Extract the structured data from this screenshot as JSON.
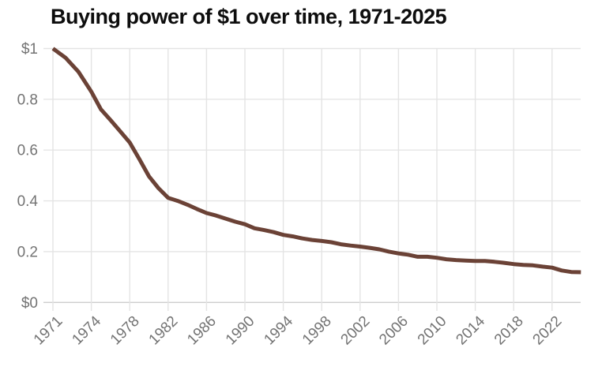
{
  "chart_data": {
    "type": "line",
    "title": "Buying power of $1 over time, 1971-2025",
    "series_name": "Buying power of $1",
    "xlabel": "",
    "ylabel": "",
    "ylim": [
      0,
      1
    ],
    "xlim": [
      1971,
      2025
    ],
    "grid": true,
    "legend_position": "none",
    "x_ticks": [
      1971,
      1974,
      1978,
      1982,
      1986,
      1990,
      1994,
      1998,
      2002,
      2006,
      2010,
      2014,
      2018,
      2022
    ],
    "y_ticks": [
      {
        "value": 0.0,
        "label": "$0"
      },
      {
        "value": 0.2,
        "label": "0.2"
      },
      {
        "value": 0.4,
        "label": "0.4"
      },
      {
        "value": 0.6,
        "label": "0.6"
      },
      {
        "value": 0.8,
        "label": "0.8"
      },
      {
        "value": 1.0,
        "label": "$1"
      }
    ],
    "x": [
      1971,
      1972,
      1973,
      1974,
      1975,
      1976,
      1977,
      1978,
      1979,
      1980,
      1981,
      1982,
      1983,
      1984,
      1985,
      1986,
      1987,
      1988,
      1989,
      1990,
      1991,
      1992,
      1993,
      1994,
      1995,
      1996,
      1997,
      1998,
      1999,
      2000,
      2001,
      2002,
      2003,
      2004,
      2005,
      2006,
      2007,
      2008,
      2009,
      2010,
      2011,
      2012,
      2013,
      2014,
      2015,
      2016,
      2017,
      2018,
      2019,
      2020,
      2021,
      2022,
      2023,
      2024,
      2025
    ],
    "values": [
      1.0,
      0.963,
      0.908,
      0.83,
      0.76,
      0.718,
      0.674,
      0.63,
      0.565,
      0.497,
      0.45,
      0.412,
      0.4,
      0.385,
      0.368,
      0.352,
      0.342,
      0.33,
      0.318,
      0.308,
      0.292,
      0.285,
      0.277,
      0.266,
      0.26,
      0.252,
      0.246,
      0.242,
      0.237,
      0.229,
      0.224,
      0.22,
      0.215,
      0.209,
      0.2,
      0.193,
      0.188,
      0.18,
      0.18,
      0.176,
      0.17,
      0.167,
      0.165,
      0.163,
      0.163,
      0.16,
      0.156,
      0.151,
      0.148,
      0.146,
      0.141,
      0.137,
      0.126,
      0.12,
      0.119
    ],
    "colors": {
      "line": "#6b4236",
      "grid": "#e4e4e4",
      "baseline": "#cdcdcd",
      "tick_label": "#737373",
      "title": "#0d0d0d",
      "background": "#ffffff"
    }
  }
}
